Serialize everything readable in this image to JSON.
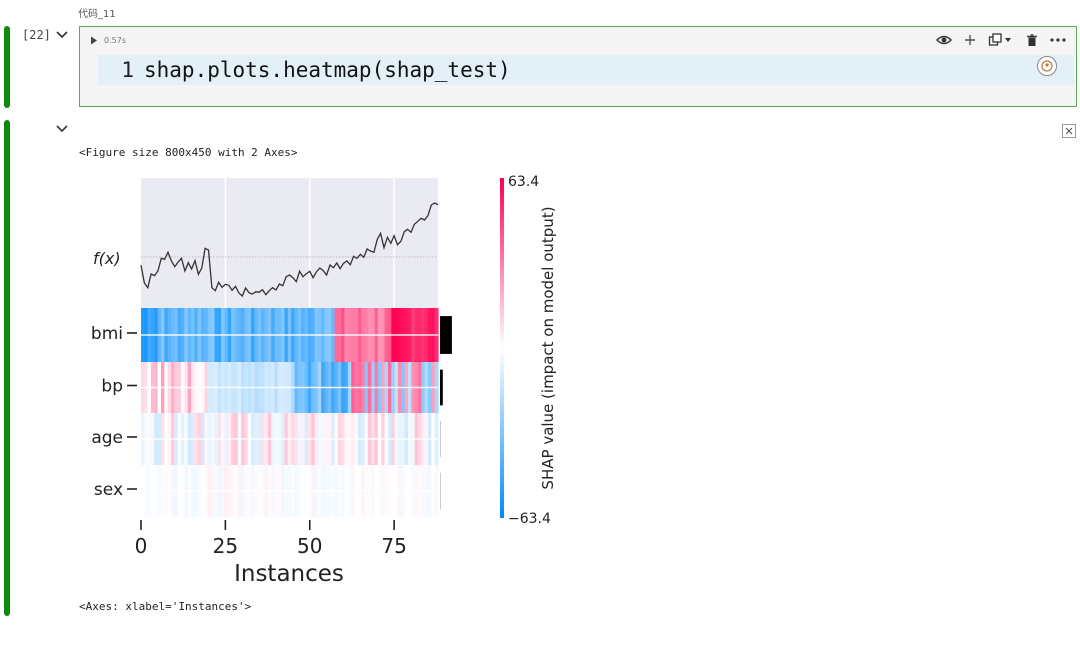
{
  "cell": {
    "label": "代码_11",
    "exec_count": "[22]",
    "run_time": "0.57s",
    "line_number": "1",
    "code": "shap.plots.heatmap(shap_test)"
  },
  "toolbar": {
    "icons": [
      "eye-icon",
      "plus-icon",
      "copy-dropdown-icon",
      "trash-icon",
      "more-icon"
    ]
  },
  "output": {
    "figure_text": "<Figure size 800x450 with 2 Axes>",
    "axes_text": "<Axes: xlabel='Instances'>"
  },
  "chart_data": {
    "type": "heatmap",
    "xlabel": "Instances",
    "xticks": [
      0,
      25,
      50,
      75
    ],
    "xlim": [
      0,
      88
    ],
    "features": [
      "bmi",
      "bp",
      "age",
      "sex"
    ],
    "fx_label": "f(x)",
    "fx": [
      129,
      76,
      62,
      103,
      98,
      112,
      150,
      147,
      168,
      142,
      125,
      139,
      150,
      112,
      137,
      118,
      143,
      102,
      121,
      180,
      175,
      62,
      53,
      78,
      63,
      72,
      69,
      54,
      66,
      46,
      37,
      61,
      47,
      43,
      50,
      48,
      56,
      41,
      53,
      62,
      55,
      73,
      68,
      95,
      100,
      92,
      80,
      111,
      95,
      104,
      111,
      92,
      110,
      121,
      113,
      100,
      130,
      122,
      136,
      119,
      135,
      142,
      131,
      156,
      150,
      162,
      153,
      178,
      172,
      168,
      207,
      225,
      182,
      213,
      195,
      218,
      191,
      201,
      230,
      237,
      228,
      252,
      261,
      270,
      265,
      278,
      310,
      316,
      311
    ],
    "feature_importance": [
      0.85,
      0.2,
      0.05,
      0.01
    ],
    "colorbar": {
      "max": "63.4",
      "min": "−63.4",
      "label": "SHAP value (impact on model output)"
    },
    "colors": {
      "neg": "#008bfb",
      "pos": "#ff0052",
      "mid": "#ffffff",
      "fx_bg": "#eaeaf2"
    }
  }
}
